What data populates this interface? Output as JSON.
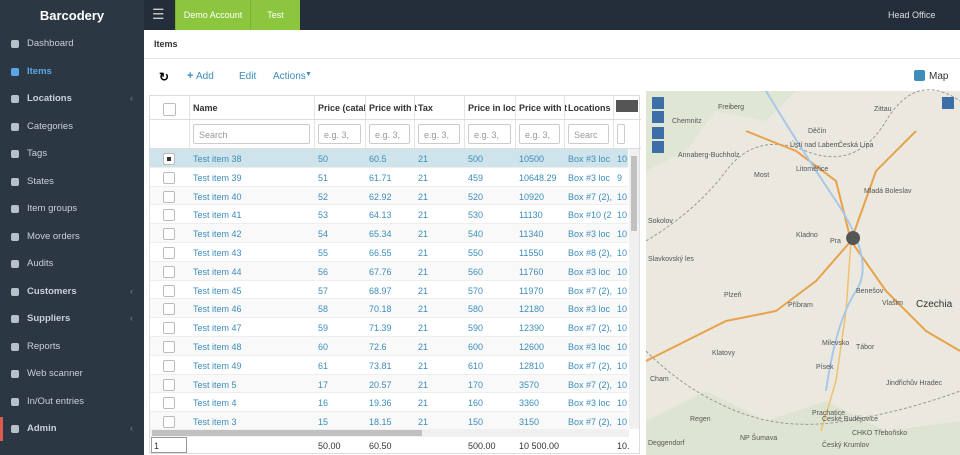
{
  "sidebar": {
    "brand": "Barcodery",
    "menu": [
      "Dashboard",
      "Items",
      "Locations",
      "Categories",
      "Tags",
      "States",
      "Item groups",
      "Move orders",
      "Audits",
      "Customers",
      "Suppliers",
      "Reports",
      "Web scanner",
      "In/Out entries",
      "Admin"
    ]
  },
  "topbar": {
    "tabs": [
      "Demo Account",
      "Test"
    ],
    "user": "Head Office"
  },
  "breadcrumb": "Items",
  "toolbar": {
    "add": "Add",
    "edit": "Edit",
    "actions": "Actions",
    "map": "Map"
  },
  "table": {
    "headers": [
      "Name",
      "Price (catal",
      "Price with t",
      "Tax",
      "Price in loc",
      "Price with t",
      "Locations"
    ],
    "filters": [
      "Search",
      "e.g. 3,",
      "e.g. 3,",
      "e.g. 3,",
      "e.g. 3,",
      "e.g. 3,",
      "Searc",
      "e"
    ],
    "rows": [
      [
        "Test item 38",
        "50",
        "60.5",
        "21",
        "500",
        "10500",
        "Box #3 loc",
        "10"
      ],
      [
        "Test item 39",
        "51",
        "61.71",
        "21",
        "459",
        "10648.29",
        "Box #3 loc",
        "9"
      ],
      [
        "Test item 40",
        "52",
        "62.92",
        "21",
        "520",
        "10920",
        "Box #7 (2),",
        "10"
      ],
      [
        "Test item 41",
        "53",
        "64.13",
        "21",
        "530",
        "11130",
        "Box #10 (2",
        "10"
      ],
      [
        "Test item 42",
        "54",
        "65.34",
        "21",
        "540",
        "11340",
        "Box #3 loc",
        "10"
      ],
      [
        "Test item 43",
        "55",
        "66.55",
        "21",
        "550",
        "11550",
        "Box #8 (2),",
        "10"
      ],
      [
        "Test item 44",
        "56",
        "67.76",
        "21",
        "560",
        "11760",
        "Box #3 loc",
        "10"
      ],
      [
        "Test item 45",
        "57",
        "68.97",
        "21",
        "570",
        "11970",
        "Box #7 (2),",
        "10"
      ],
      [
        "Test item 46",
        "58",
        "70.18",
        "21",
        "580",
        "12180",
        "Box #3 loc",
        "10"
      ],
      [
        "Test item 47",
        "59",
        "71.39",
        "21",
        "590",
        "12390",
        "Box #7 (2),",
        "10"
      ],
      [
        "Test item 48",
        "60",
        "72.6",
        "21",
        "600",
        "12600",
        "Box #3 loc",
        "10"
      ],
      [
        "Test item 49",
        "61",
        "73.81",
        "21",
        "610",
        "12810",
        "Box #7 (2),",
        "10"
      ],
      [
        "Test item 5",
        "17",
        "20.57",
        "21",
        "170",
        "3570",
        "Box #7 (2),",
        "10"
      ],
      [
        "Test item 4",
        "16",
        "19.36",
        "21",
        "160",
        "3360",
        "Box #3 loc",
        "10"
      ],
      [
        "Test item 3",
        "15",
        "18.15",
        "21",
        "150",
        "3150",
        "Box #7 (2),",
        "10"
      ]
    ],
    "footer": [
      "1",
      "50.00",
      "60.50",
      "500.00",
      "10 500.00",
      "10."
    ]
  },
  "map": {
    "labels": [
      "Freiberg",
      "Chemnitz",
      "Zittau",
      "Děčín",
      "Česká Lípa",
      "Ústí nad Labem",
      "Annaberg-Buchholz",
      "Most",
      "Litoměřice",
      "Mladá Boleslav",
      "Sokolov",
      "Kladno",
      "Pra",
      "Slavkovský les",
      "Plzeň",
      "Příbram",
      "Benešov",
      "Vlašim",
      "Czechia",
      "Milevsko",
      "Tábor",
      "Klatovy",
      "Písek",
      "Cham",
      "Jindřichův Hradec",
      "Prachatice",
      "České Budějovice",
      "Regen",
      "NP Šumava",
      "CHKO Třeboňsko",
      "Deggendorf",
      "Český Krumlov"
    ]
  }
}
